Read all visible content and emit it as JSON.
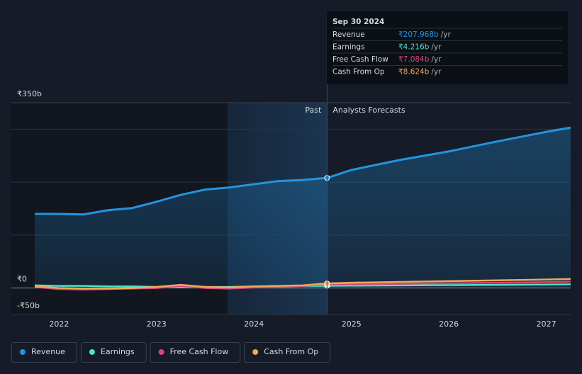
{
  "chart_data": {
    "type": "line",
    "x": [
      2021.75,
      2022,
      2022.25,
      2022.5,
      2022.75,
      2023,
      2023.25,
      2023.5,
      2023.75,
      2024,
      2024.25,
      2024.5,
      2024.75,
      2025,
      2025.5,
      2026,
      2026.5,
      2027,
      2027.25
    ],
    "series": [
      {
        "name": "Revenue",
        "color": "#2394df",
        "area": true,
        "values": [
          140,
          140,
          139,
          147,
          151,
          163,
          176,
          186,
          190,
          196,
          202,
          204,
          207.968,
          223,
          242,
          258,
          277,
          295,
          303
        ]
      },
      {
        "name": "Earnings",
        "color": "#4fe3c2",
        "values": [
          5,
          4,
          4,
          3,
          3,
          2,
          2,
          2,
          2,
          3,
          3,
          4,
          4.216,
          4.5,
          5,
          5.5,
          6,
          6.5,
          7
        ]
      },
      {
        "name": "Free Cash Flow",
        "color": "#d6457c",
        "values": [
          2,
          -2,
          -3,
          -2,
          -1,
          0,
          4,
          0,
          -1,
          1,
          2,
          4,
          7.084,
          7,
          8,
          9,
          10,
          11,
          12
        ]
      },
      {
        "name": "Cash From Op",
        "color": "#f0a85a",
        "values": [
          3,
          0,
          -1,
          -1,
          0,
          2,
          6,
          2,
          1,
          3,
          4,
          5,
          8.624,
          10,
          11.5,
          13,
          14.5,
          16,
          17
        ]
      }
    ],
    "xlim": [
      2021.51,
      2027.25
    ],
    "xticks": [
      2022,
      2023,
      2024,
      2025,
      2026,
      2027
    ],
    "ylim": [
      -50,
      350
    ],
    "yticks": [
      {
        "value": 350,
        "label": "₹350b"
      },
      {
        "value": 0,
        "label": "₹0"
      },
      {
        "value": -50,
        "label": "-₹50b"
      }
    ],
    "gridlines": [
      100,
      200,
      300
    ],
    "highlight_range": [
      2023.73,
      2024.75
    ],
    "annotations": {
      "past": "Past",
      "forecast": "Analysts Forecasts"
    },
    "tooltip": {
      "title": "Sep 30 2024",
      "rows": [
        {
          "label": "Revenue",
          "value": "₹207.968b",
          "unit": "/yr"
        },
        {
          "label": "Earnings",
          "value": "₹4.216b",
          "unit": "/yr"
        },
        {
          "label": "Free Cash Flow",
          "value": "₹7.084b",
          "unit": "/yr"
        },
        {
          "label": "Cash From Op",
          "value": "₹8.624b",
          "unit": "/yr"
        }
      ]
    }
  }
}
